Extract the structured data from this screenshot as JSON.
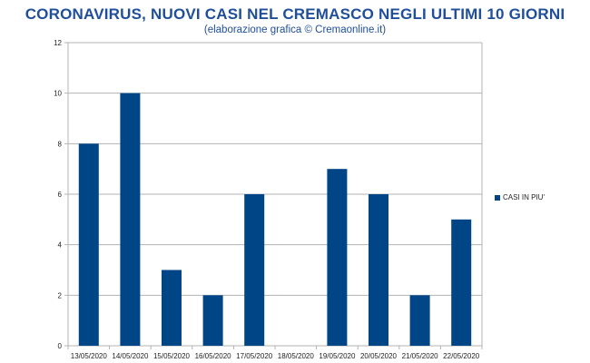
{
  "header": {
    "title": "CORONAVIRUS, NUOVI CASI NEL CREMASCO NEGLI ULTIMI 10 GIORNI",
    "subtitle": "(elaborazione grafica © Cremaonline.it)"
  },
  "chart_data": {
    "type": "bar",
    "title": "CORONAVIRUS, NUOVI CASI NEL CREMASCO NEGLI ULTIMI 10 GIORNI",
    "subtitle": "(elaborazione grafica © Cremaonline.it)",
    "categories": [
      "13/05/2020",
      "14/05/2020",
      "15/05/2020",
      "16/05/2020",
      "17/05/2020",
      "18/05/2020",
      "19/05/2020",
      "20/05/2020",
      "21/05/2020",
      "22/05/2020"
    ],
    "series": [
      {
        "name": "CASI IN PIU'",
        "values": [
          8,
          10,
          3,
          2,
          6,
          0,
          7,
          6,
          2,
          5
        ],
        "color": "#004586"
      }
    ],
    "yticks": [
      0,
      2,
      4,
      6,
      8,
      10,
      12
    ],
    "ylim": [
      0,
      12
    ],
    "grid": true,
    "legend_position": "right"
  }
}
